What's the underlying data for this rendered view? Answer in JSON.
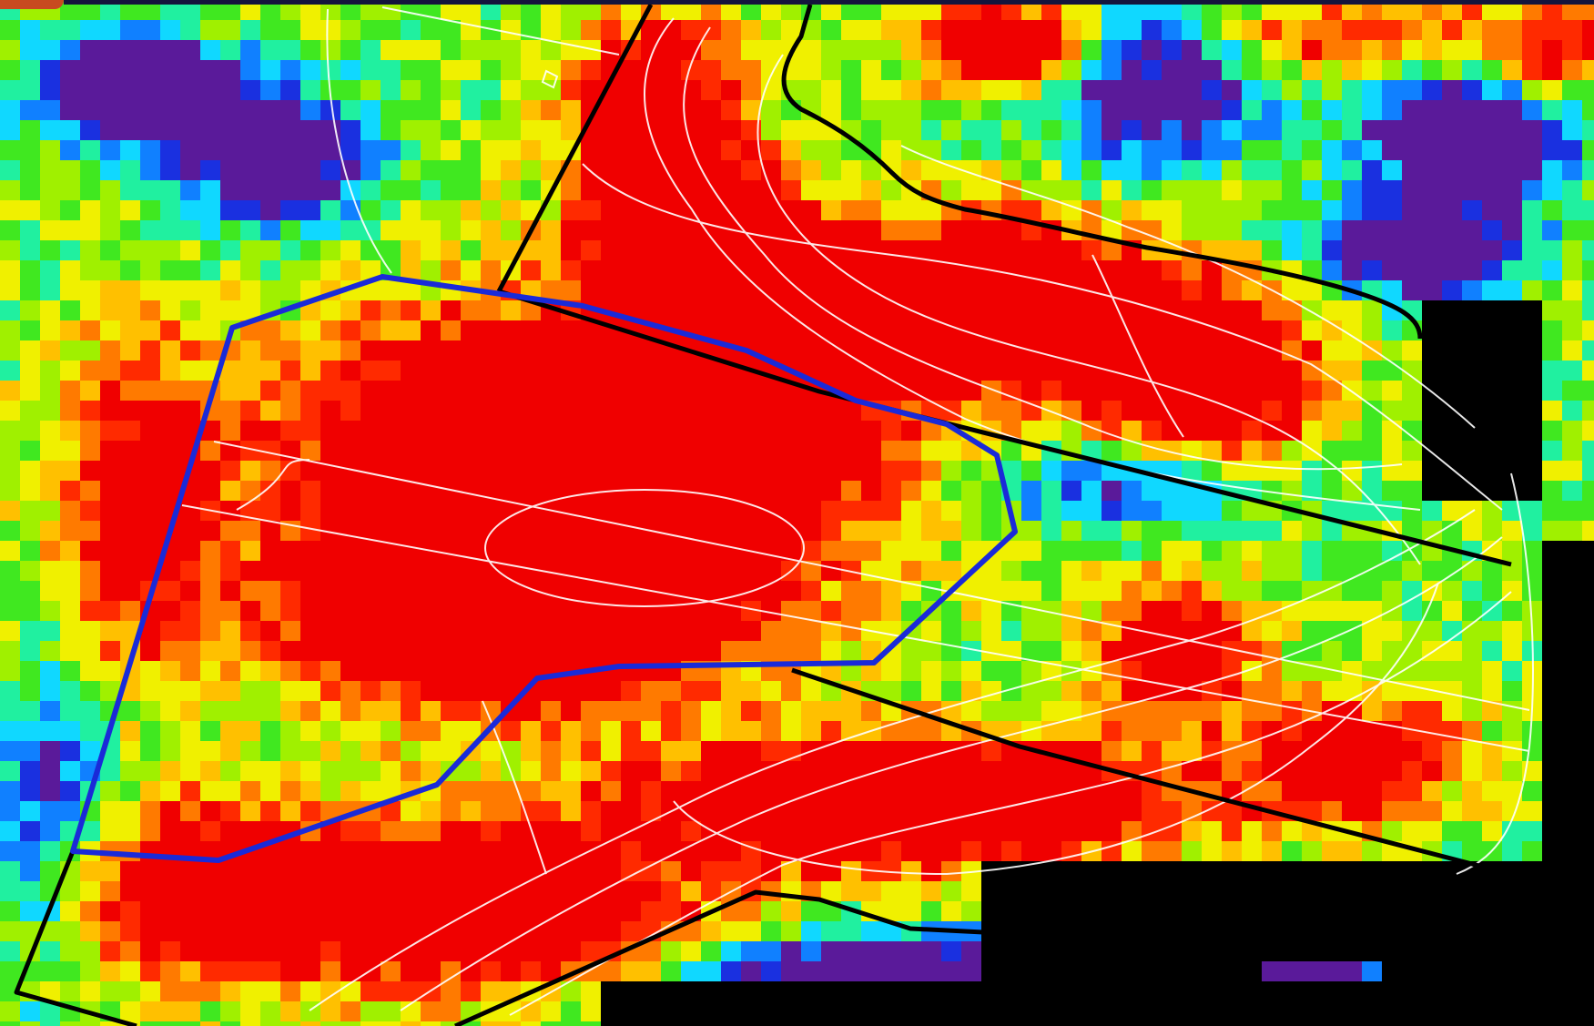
{
  "map": {
    "type": "field-heatmap",
    "palette": [
      "#000000",
      "#2a0a5a",
      "#5a1a9a",
      "#1a30e0",
      "#1080ff",
      "#10d8ff",
      "#20f0a0",
      "#40e820",
      "#a0f000",
      "#f0f000",
      "#ffc000",
      "#ff7a00",
      "#ff2a00",
      "#f00000"
    ],
    "background_color": "#000000",
    "boundary_color": "#000000",
    "selection_color": "#1a2ad8",
    "contour_color": "#ffffff",
    "hot_color": "#f00000",
    "cool_color": "#1a30e0"
  }
}
